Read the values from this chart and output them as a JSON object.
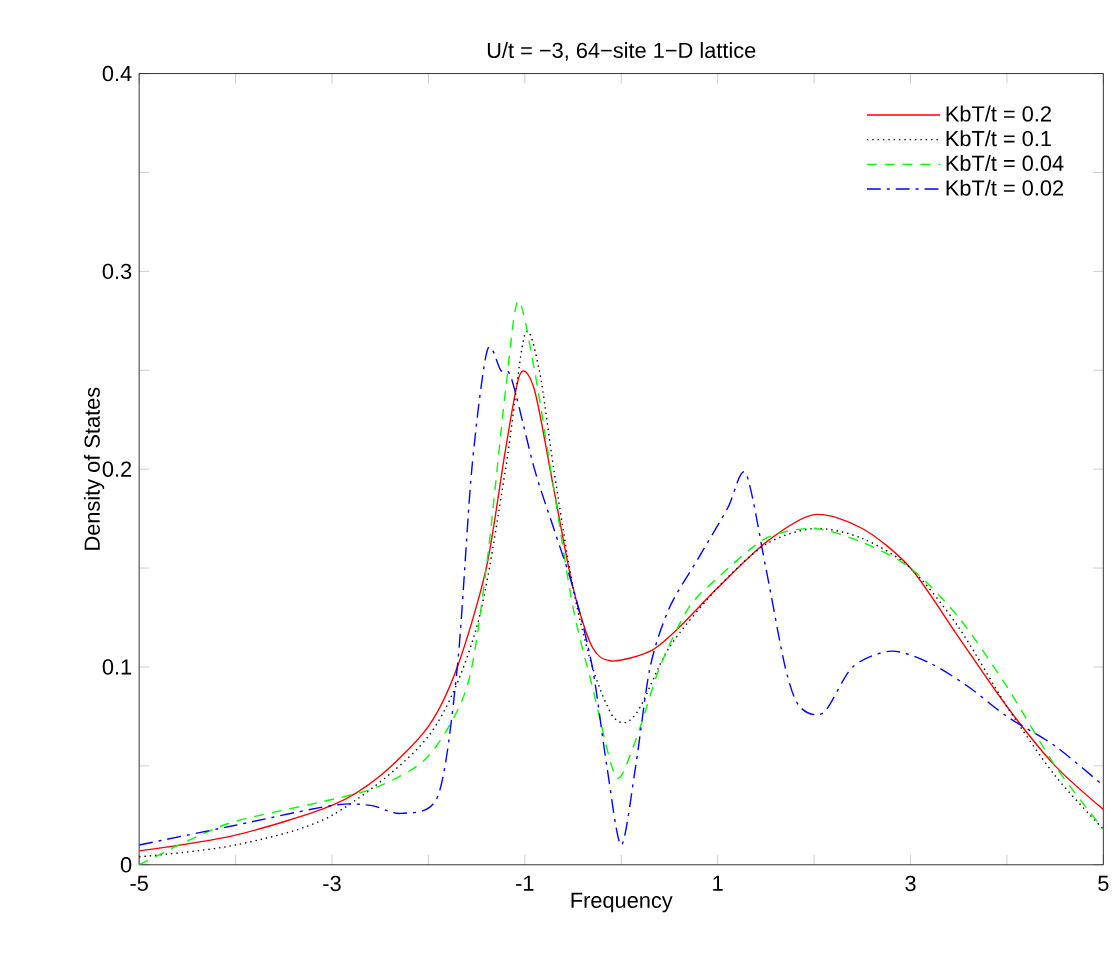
{
  "chart_data": {
    "type": "line",
    "title": "U/t = −3, 64−site 1−D lattice",
    "xlabel": "Frequency",
    "ylabel": "Density of States",
    "xlim": [
      -5,
      5
    ],
    "ylim": [
      0,
      0.4
    ],
    "xticks": [
      -5,
      {
        "value": -4,
        "label": null
      },
      -3,
      {
        "value": -2,
        "label": null
      },
      -1,
      {
        "value": 0,
        "label": null
      },
      1,
      {
        "value": 2,
        "label": null
      },
      3,
      {
        "value": 4,
        "label": null
      },
      5
    ],
    "yticks": [
      0,
      {
        "value": 0.05,
        "label": null
      },
      0.1,
      {
        "value": 0.15,
        "label": null
      },
      0.2,
      {
        "value": 0.25,
        "label": null
      },
      0.3,
      {
        "value": 0.35,
        "label": null
      },
      0.4
    ],
    "legend": "top right",
    "grid": false,
    "marker": "none",
    "series": [
      {
        "name": "KbT/t = 0.2",
        "color": "#ff0000",
        "line_style": "solid",
        "x": [
          -5,
          -4,
          -3,
          -2.5,
          -2,
          -1.7,
          -1.4,
          -1.2,
          -1.05,
          -0.9,
          -0.7,
          -0.5,
          -0.3,
          -0.1,
          0.3,
          0.6,
          1,
          1.5,
          2,
          2.5,
          3,
          3.5,
          4,
          4.5,
          5
        ],
        "values": [
          0.007,
          0.015,
          0.03,
          0.045,
          0.07,
          0.1,
          0.15,
          0.21,
          0.248,
          0.24,
          0.19,
          0.14,
          0.11,
          0.103,
          0.108,
          0.12,
          0.14,
          0.163,
          0.177,
          0.17,
          0.15,
          0.115,
          0.08,
          0.05,
          0.028
        ]
      },
      {
        "name": "KbT/t = 0.1",
        "color": "#000000",
        "line_style": "dotted",
        "x": [
          -5,
          -4,
          -3,
          -2,
          -1.5,
          -1.2,
          -1,
          -0.85,
          -0.7,
          -0.5,
          -0.3,
          -0.1,
          0.05,
          0.2,
          0.5,
          1,
          1.5,
          2,
          2.5,
          3,
          3.5,
          4,
          4.5,
          5
        ],
        "values": [
          0.004,
          0.01,
          0.025,
          0.065,
          0.12,
          0.2,
          0.268,
          0.25,
          0.2,
          0.14,
          0.1,
          0.076,
          0.072,
          0.08,
          0.11,
          0.14,
          0.162,
          0.17,
          0.165,
          0.15,
          0.12,
          0.08,
          0.045,
          0.018
        ]
      },
      {
        "name": "KbT/t = 0.04",
        "color": "#00ff00",
        "line_style": "dashed",
        "x": [
          -5,
          -4.5,
          -4,
          -3,
          -2.5,
          -2,
          -1.6,
          -1.4,
          -1.2,
          -1.07,
          -0.9,
          -0.7,
          -0.5,
          -0.3,
          -0.1,
          0.0,
          0.2,
          0.4,
          0.7,
          1,
          1.5,
          2,
          2.5,
          3,
          3.5,
          4,
          4.5,
          5
        ],
        "values": [
          0.0,
          0.012,
          0.022,
          0.033,
          0.04,
          0.055,
          0.09,
          0.15,
          0.24,
          0.285,
          0.25,
          0.19,
          0.13,
          0.09,
          0.05,
          0.045,
          0.07,
          0.1,
          0.13,
          0.145,
          0.165,
          0.17,
          0.163,
          0.15,
          0.125,
          0.09,
          0.05,
          0.018
        ]
      },
      {
        "name": "KbT/t = 0.02",
        "color": "#0000ff",
        "line_style": "dashdot",
        "x": [
          -5,
          -4,
          -3,
          -2.6,
          -2.28,
          -1.9,
          -1.7,
          -1.55,
          -1.39,
          -1.25,
          -1.14,
          -0.9,
          -0.7,
          -0.5,
          -0.3,
          -0.15,
          0.0,
          0.15,
          0.3,
          0.5,
          0.8,
          1.1,
          1.29,
          1.5,
          1.7,
          1.85,
          2.1,
          2.4,
          2.8,
          3.2,
          3.6,
          4,
          4.5,
          5
        ],
        "values": [
          0.01,
          0.02,
          0.03,
          0.03,
          0.026,
          0.035,
          0.1,
          0.2,
          0.26,
          0.25,
          0.246,
          0.2,
          0.17,
          0.14,
          0.1,
          0.05,
          0.01,
          0.05,
          0.1,
          0.13,
          0.155,
          0.18,
          0.198,
          0.15,
          0.1,
          0.08,
          0.077,
          0.1,
          0.108,
          0.102,
          0.09,
          0.075,
          0.06,
          0.04
        ]
      }
    ]
  }
}
